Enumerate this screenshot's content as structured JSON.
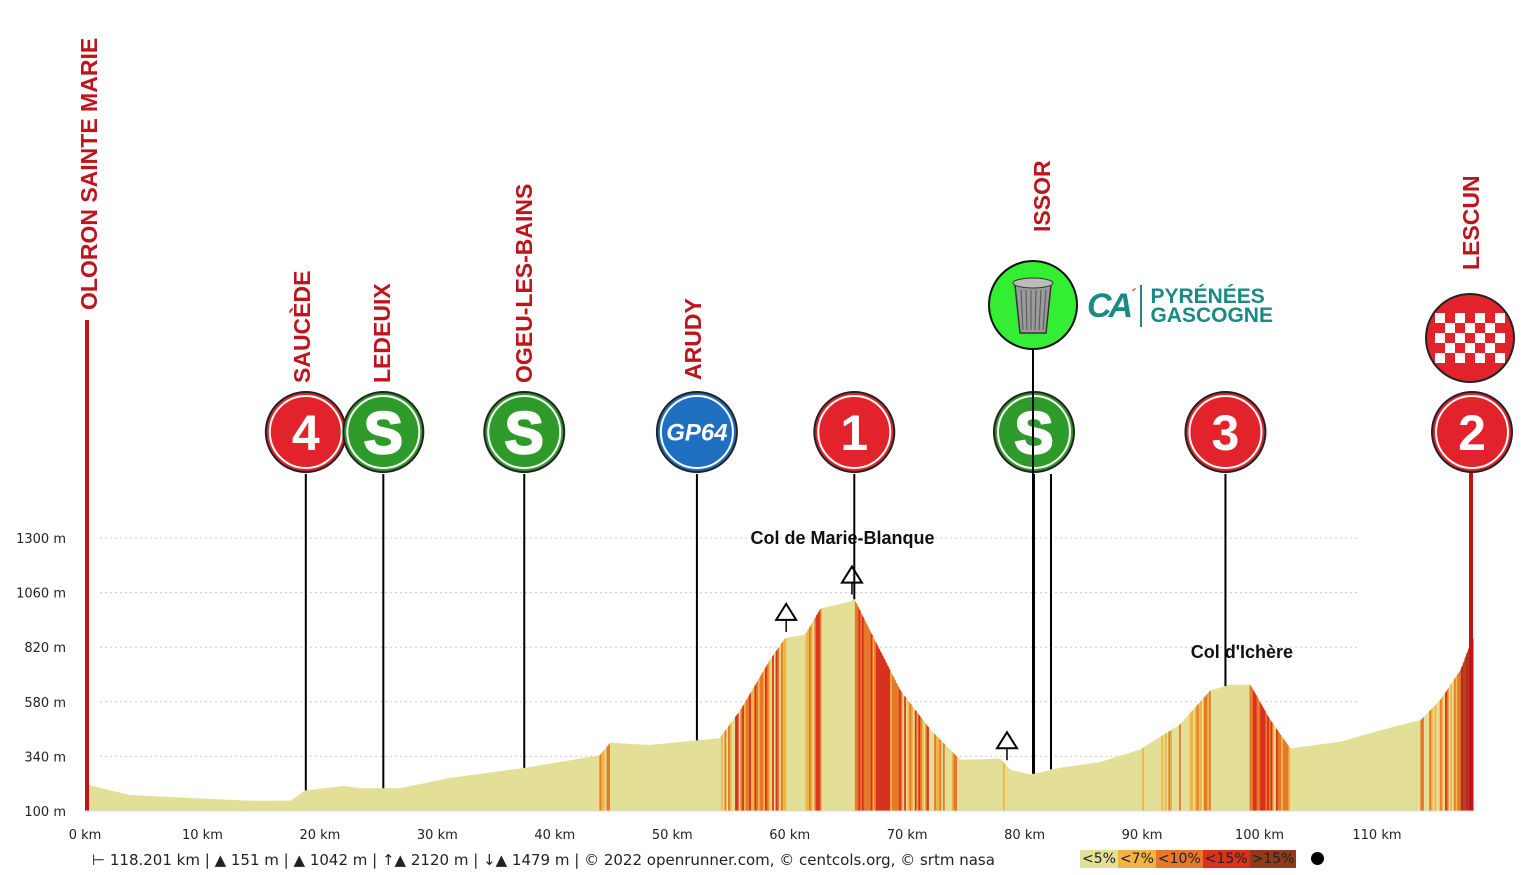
{
  "chart_data": {
    "type": "area",
    "title": "",
    "xlabel": "",
    "ylabel": "",
    "xlim": [
      0,
      118.2
    ],
    "ylim": [
      100,
      1300
    ],
    "x_ticks": [
      "0 km",
      "10 km",
      "20 km",
      "30 km",
      "40 km",
      "50 km",
      "60 km",
      "70 km",
      "80 km",
      "90 km",
      "100 km",
      "110 km"
    ],
    "x_tick_values": [
      0,
      10,
      20,
      30,
      40,
      50,
      60,
      70,
      80,
      90,
      100,
      110
    ],
    "y_ticks": [
      "100 m",
      "340 m",
      "580 m",
      "820 m",
      "1060 m",
      "1300 m"
    ],
    "y_tick_values": [
      100,
      340,
      580,
      820,
      1060,
      1300
    ],
    "grid": true,
    "profile": {
      "km": [
        0,
        0.3,
        3.8,
        7.7,
        14,
        17.5,
        18.7,
        22,
        23.4,
        26.8,
        31,
        37.5,
        43.8,
        44.7,
        48,
        54,
        55.8,
        58.3,
        59.6,
        61.3,
        62.6,
        65.1,
        65.5,
        66.8,
        69.4,
        72,
        74.5,
        77.9,
        78.8,
        80.5,
        83,
        86.4,
        89.8,
        93.2,
        95.8,
        97.5,
        99.2,
        100.9,
        102.6,
        106.9,
        110.3,
        113.7,
        115.4,
        117.1,
        117.9,
        118.2
      ],
      "elev": [
        215,
        214,
        170,
        160,
        145,
        145,
        190,
        210,
        200,
        200,
        245,
        290,
        345,
        400,
        390,
        420,
        545,
        765,
        860,
        875,
        990,
        1020,
        1030,
        895,
        630,
        455,
        325,
        330,
        280,
        260,
        290,
        315,
        370,
        480,
        630,
        655,
        655,
        500,
        375,
        405,
        455,
        500,
        590,
        720,
        830,
        860
      ]
    },
    "gradient_legend": [
      {
        "label": "<5%",
        "color": "#e3df96"
      },
      {
        "label": "<7%",
        "color": "#f0b444"
      },
      {
        "label": "<10%",
        "color": "#e6782c"
      },
      {
        "label": "<15%",
        "color": "#d8321e"
      },
      {
        "label": ">15%",
        "color": "#8e3c1c"
      }
    ],
    "annotations": [
      {
        "text": "Col de Marie-Blanque",
        "km": 64.5
      },
      {
        "text": "Col d'Ichère",
        "km": 98.5
      }
    ],
    "summits_km": [
      59.7,
      65.3,
      78.5
    ],
    "places": [
      {
        "label": "OLORON SAINTE MARIE",
        "km": 0
      },
      {
        "label": "SAUCÈDE",
        "km": 18.8,
        "badge": {
          "type": "red",
          "text": "4"
        }
      },
      {
        "label": "LEDEUIX",
        "km": 25.4,
        "badge": {
          "type": "sprint",
          "text": "S"
        }
      },
      {
        "label": "OGEU-LES-BAINS",
        "km": 37.4,
        "badge": {
          "type": "sprint",
          "text": "S"
        }
      },
      {
        "label": "ARUDY",
        "km": 52.1,
        "badge": {
          "type": "blue",
          "text": "GP64"
        }
      },
      {
        "label": "",
        "km": 65.5,
        "badge": {
          "type": "red",
          "text": "1"
        }
      },
      {
        "label": "ISSOR",
        "km": 80.8,
        "badge": {
          "type": "sprint",
          "text": "S"
        }
      },
      {
        "label": "",
        "km": 97.1,
        "badge": {
          "type": "red",
          "text": "3"
        }
      },
      {
        "label": "LESCUN",
        "km": 118.2,
        "badge": {
          "type": "red",
          "text": "2"
        }
      }
    ]
  },
  "sponsor": {
    "line1": "PYRÉNÉES",
    "line2": "GASCOGNE",
    "mark": "CA"
  },
  "footer": {
    "distance": "118.201 km",
    "min_alt": "151 m",
    "max_alt": "1042 m",
    "ascent": "2120 m",
    "descent": "1479 m",
    "credits": "© 2022 openrunner.com, © centcols.org, © srtm nasa"
  }
}
